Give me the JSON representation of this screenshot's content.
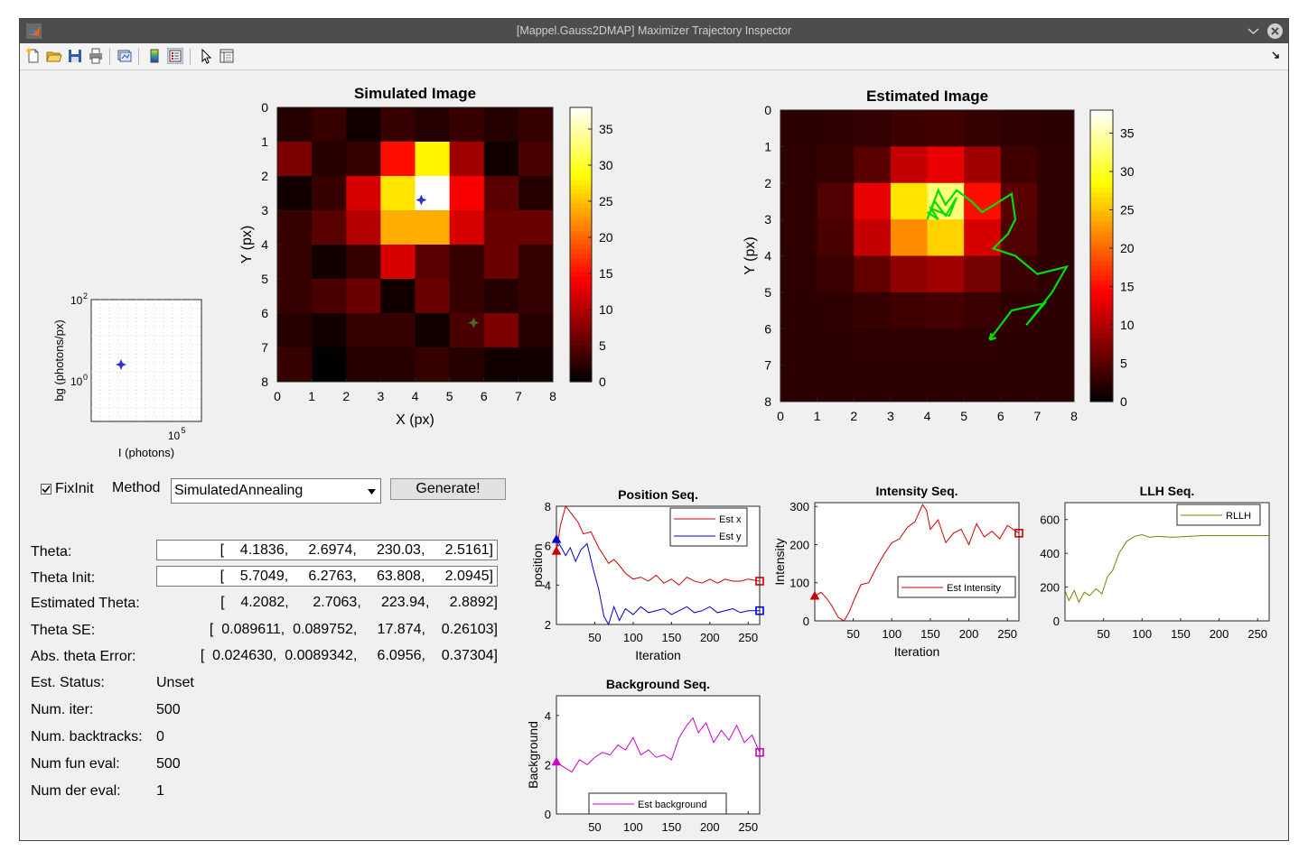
{
  "window": {
    "title": "[Mappel.Gauss2DMAP] Maximizer Trajectory Inspector"
  },
  "toolbar": {
    "icons": [
      "new-file-icon",
      "open-folder-icon",
      "save-icon",
      "print-icon",
      "link-plot-icon",
      "colorbar-icon",
      "legend-icon",
      "pointer-icon",
      "property-inspector-icon"
    ]
  },
  "controls": {
    "fixinit_label": "FixInit",
    "fixinit_checked": true,
    "method_label": "Method",
    "method_value": "SimulatedAnnealing",
    "generate_label": "Generate!"
  },
  "params": [
    {
      "label": "Theta:",
      "value": "[    4.1836,     2.6974,     230.03,     2.5161]",
      "editable": true
    },
    {
      "label": "Theta Init:",
      "value": "[    5.7049,     6.2763,     63.808,     2.0945]",
      "editable": true
    },
    {
      "label": "Estimated Theta:",
      "value": "[    4.2082,      2.7063,     223.94,     2.8892]",
      "editable": false
    },
    {
      "label": "Theta SE:",
      "value": "[  0.089611,  0.089752,     17.874,    0.26103]",
      "editable": false
    },
    {
      "label": "Abs. theta Error:",
      "value": "[  0.024630,  0.0089342,     6.0956,    0.37304]",
      "editable": false
    }
  ],
  "status": [
    {
      "label": "Est. Status:",
      "value": "Unset"
    },
    {
      "label": "Num. iter:",
      "value": "500"
    },
    {
      "label": "Num. backtracks:",
      "value": "0"
    },
    {
      "label": "Num fun eval:",
      "value": "500"
    },
    {
      "label": "Num der eval:",
      "value": "1"
    }
  ],
  "chart_data": [
    {
      "id": "bg-intensity-scatter",
      "type": "scatter",
      "xlabel": "I (photons)",
      "ylabel": "bg (photons/px)",
      "x_scale": "log",
      "y_scale": "log",
      "x_ticks": [
        "10^5"
      ],
      "y_ticks": [
        "10^2",
        "10^0"
      ],
      "points": [
        {
          "x": 230.03,
          "y": 2.5161,
          "color": "#3030d0"
        }
      ]
    },
    {
      "id": "simulated-image",
      "type": "heatmap",
      "title": "Simulated Image",
      "xlabel": "X (px)",
      "ylabel": "Y (px)",
      "x_ticks": [
        "0",
        "1",
        "2",
        "3",
        "4",
        "5",
        "6",
        "7",
        "8"
      ],
      "y_ticks": [
        "0",
        "1",
        "2",
        "3",
        "4",
        "5",
        "6",
        "7",
        "8"
      ],
      "colorbar_ticks": [
        "0",
        "5",
        "10",
        "15",
        "20",
        "25",
        "30",
        "35"
      ],
      "clim": [
        0,
        38
      ],
      "values": [
        [
          2,
          3,
          1,
          3,
          2,
          3,
          2,
          3
        ],
        [
          7,
          2,
          3,
          15,
          28,
          9,
          1,
          4
        ],
        [
          1,
          3,
          12,
          27,
          38,
          14,
          5,
          2
        ],
        [
          3,
          5,
          10,
          24,
          24,
          12,
          6,
          6
        ],
        [
          3,
          1,
          3,
          12,
          5,
          3,
          6,
          3
        ],
        [
          3,
          4,
          6,
          1,
          6,
          3,
          2,
          3
        ],
        [
          2,
          1,
          3,
          3,
          1,
          4,
          7,
          2
        ],
        [
          3,
          0,
          2,
          2,
          3,
          2,
          1,
          1
        ]
      ],
      "markers": [
        {
          "x": 4.18,
          "y": 2.7,
          "color": "#3030d0"
        },
        {
          "x": 5.7,
          "y": 6.28,
          "color": "#4a6a20"
        }
      ]
    },
    {
      "id": "estimated-image",
      "type": "heatmap",
      "title": "Estimated Image",
      "xlabel": "",
      "ylabel": "Y (px)",
      "x_ticks": [
        "0",
        "1",
        "2",
        "3",
        "4",
        "5",
        "6",
        "7",
        "8"
      ],
      "y_ticks": [
        "0",
        "1",
        "2",
        "3",
        "4",
        "5",
        "6",
        "7",
        "8"
      ],
      "colorbar_ticks": [
        "0",
        "5",
        "10",
        "15",
        "20",
        "25",
        "30",
        "35"
      ],
      "clim": [
        0,
        38
      ],
      "values": [
        [
          2.5,
          2.6,
          2.8,
          3.5,
          3.6,
          3.0,
          2.6,
          2.5
        ],
        [
          2.6,
          3.0,
          5.0,
          11,
          13,
          9,
          3.6,
          2.6
        ],
        [
          2.7,
          4.5,
          13,
          27,
          33,
          15,
          5,
          2.7
        ],
        [
          2.7,
          4.0,
          11,
          22,
          26,
          12,
          4.5,
          2.7
        ],
        [
          2.6,
          3.3,
          5.5,
          8,
          9,
          6.5,
          3.3,
          2.6
        ],
        [
          2.5,
          2.6,
          3.1,
          3.6,
          3.8,
          3.2,
          2.7,
          2.5
        ],
        [
          2.5,
          2.5,
          2.6,
          2.6,
          2.6,
          2.6,
          2.5,
          2.5
        ],
        [
          2.5,
          2.5,
          2.5,
          2.5,
          2.5,
          2.5,
          2.5,
          2.5
        ]
      ],
      "trajectory": {
        "color": "#00e000",
        "points": [
          [
            5.7,
            6.3
          ],
          [
            6.3,
            5.5
          ],
          [
            7.2,
            5.3
          ],
          [
            6.7,
            5.9
          ],
          [
            7.4,
            5.0
          ],
          [
            7.8,
            4.3
          ],
          [
            7.0,
            4.5
          ],
          [
            6.4,
            4.0
          ],
          [
            5.8,
            3.8
          ],
          [
            6.2,
            3.4
          ],
          [
            6.4,
            3.0
          ],
          [
            6.3,
            2.3
          ],
          [
            5.5,
            2.8
          ],
          [
            5.2,
            2.5
          ],
          [
            4.8,
            2.2
          ],
          [
            4.5,
            2.6
          ],
          [
            4.3,
            2.2
          ],
          [
            4.0,
            3.0
          ],
          [
            4.2,
            2.5
          ],
          [
            4.5,
            2.9
          ],
          [
            4.8,
            2.4
          ],
          [
            4.6,
            2.9
          ],
          [
            4.1,
            2.7
          ],
          [
            4.3,
            3.0
          ],
          [
            4.0,
            2.8
          ]
        ]
      }
    },
    {
      "id": "position-seq",
      "type": "line",
      "title": "Position Seq.",
      "xlabel": "Iteration",
      "ylabel": "position",
      "xlim": [
        0,
        265
      ],
      "ylim": [
        2,
        8
      ],
      "x_ticks": [
        "50",
        "100",
        "150",
        "200",
        "250"
      ],
      "y_ticks": [
        "2",
        "4",
        "6",
        "8"
      ],
      "series": [
        {
          "name": "Est x",
          "color": "#cc0000",
          "x": [
            0,
            5,
            12,
            20,
            28,
            35,
            45,
            55,
            60,
            68,
            75,
            82,
            90,
            100,
            110,
            120,
            130,
            140,
            150,
            160,
            170,
            180,
            190,
            200,
            210,
            220,
            230,
            240,
            250,
            265
          ],
          "y": [
            5.7,
            7.0,
            8.0,
            7.6,
            7.2,
            6.6,
            6.7,
            5.9,
            5.6,
            5.1,
            5.3,
            5.0,
            4.6,
            4.3,
            4.4,
            4.2,
            4.5,
            4.1,
            4.3,
            4.0,
            4.4,
            4.2,
            4.1,
            4.3,
            4.1,
            4.3,
            4.2,
            4.2,
            4.3,
            4.2
          ]
        },
        {
          "name": "Est y",
          "color": "#0000cc",
          "x": [
            0,
            5,
            12,
            18,
            25,
            32,
            40,
            48,
            55,
            62,
            68,
            75,
            82,
            90,
            100,
            110,
            120,
            130,
            140,
            150,
            160,
            170,
            180,
            190,
            200,
            210,
            220,
            230,
            240,
            250,
            265
          ],
          "y": [
            6.3,
            6.0,
            5.5,
            5.9,
            5.2,
            5.8,
            6.1,
            4.8,
            3.8,
            2.4,
            2.0,
            2.9,
            2.2,
            2.8,
            2.5,
            2.9,
            2.6,
            2.7,
            2.8,
            2.5,
            2.7,
            2.9,
            2.6,
            2.7,
            2.9,
            2.6,
            2.7,
            2.8,
            2.6,
            2.7,
            2.7
          ]
        }
      ]
    },
    {
      "id": "intensity-seq",
      "type": "line",
      "title": "Intensity Seq.",
      "xlabel": "Iteration",
      "ylabel": "Intensity",
      "xlim": [
        0,
        265
      ],
      "ylim": [
        0,
        310
      ],
      "x_ticks": [
        "50",
        "100",
        "150",
        "200",
        "250"
      ],
      "y_ticks": [
        "0",
        "100",
        "200",
        "300"
      ],
      "series": [
        {
          "name": "Est Intensity",
          "color": "#cc0000",
          "x": [
            0,
            8,
            15,
            22,
            30,
            38,
            45,
            52,
            60,
            70,
            80,
            90,
            100,
            110,
            120,
            130,
            140,
            145,
            150,
            160,
            170,
            180,
            190,
            200,
            210,
            220,
            230,
            240,
            250,
            265
          ],
          "y": [
            64,
            75,
            60,
            40,
            10,
            0,
            25,
            60,
            95,
            100,
            140,
            175,
            205,
            215,
            245,
            260,
            305,
            290,
            240,
            265,
            205,
            230,
            240,
            200,
            255,
            220,
            235,
            215,
            250,
            230
          ]
        }
      ]
    },
    {
      "id": "llh-seq",
      "type": "line",
      "title": "LLH Seq.",
      "xlabel": "",
      "ylabel": "",
      "xlim": [
        0,
        265
      ],
      "ylim": [
        0,
        700
      ],
      "x_ticks": [
        "50",
        "100",
        "150",
        "200",
        "250"
      ],
      "y_ticks": [
        "0",
        "200",
        "400",
        "600"
      ],
      "series": [
        {
          "name": "RLLH",
          "color": "#808000",
          "x": [
            0,
            5,
            12,
            18,
            25,
            32,
            40,
            48,
            55,
            62,
            70,
            80,
            90,
            100,
            110,
            120,
            140,
            160,
            180,
            200,
            220,
            240,
            265
          ],
          "y": [
            180,
            120,
            180,
            110,
            170,
            150,
            190,
            160,
            260,
            300,
            400,
            470,
            500,
            510,
            495,
            500,
            495,
            500,
            505,
            505,
            505,
            505,
            505
          ]
        }
      ]
    },
    {
      "id": "background-seq",
      "type": "line",
      "title": "Background Seq.",
      "xlabel": "Iteration",
      "ylabel": "Background",
      "xlim": [
        0,
        265
      ],
      "ylim": [
        0,
        4.8
      ],
      "x_ticks": [
        "50",
        "100",
        "150",
        "200",
        "250"
      ],
      "y_ticks": [
        "0",
        "2",
        "4"
      ],
      "series": [
        {
          "name": "Est background",
          "color": "#cc00cc",
          "x": [
            0,
            10,
            20,
            30,
            40,
            50,
            60,
            70,
            80,
            90,
            100,
            110,
            120,
            130,
            140,
            150,
            160,
            170,
            178,
            185,
            195,
            205,
            215,
            225,
            235,
            245,
            255,
            265
          ],
          "y": [
            2.1,
            1.9,
            1.7,
            2.2,
            2.0,
            2.3,
            2.5,
            2.4,
            2.8,
            2.6,
            3.1,
            2.4,
            2.6,
            2.3,
            2.4,
            2.2,
            3.1,
            3.6,
            3.9,
            3.3,
            3.7,
            2.9,
            3.4,
            3.0,
            3.6,
            2.9,
            3.2,
            2.5
          ]
        }
      ]
    }
  ]
}
